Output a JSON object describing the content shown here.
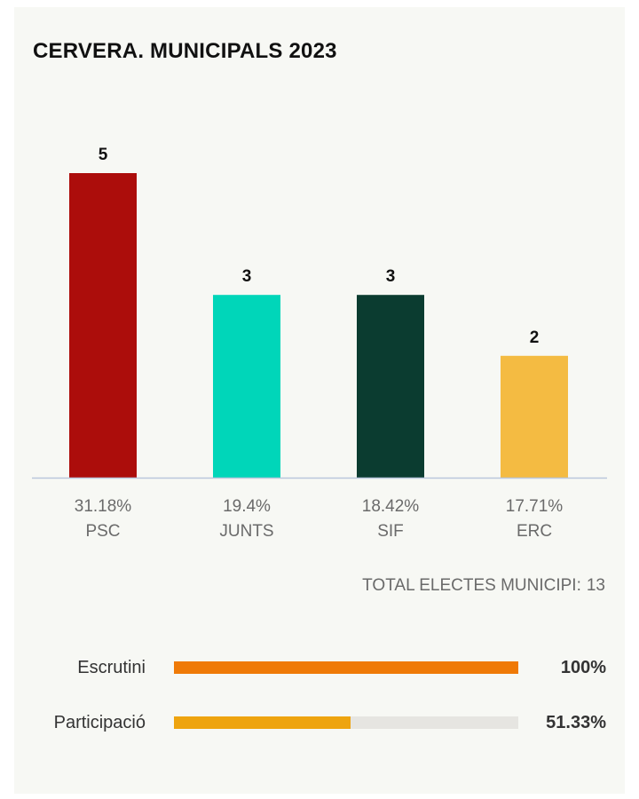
{
  "chart_data": {
    "type": "bar",
    "title": "CERVERA. MUNICIPALS 2023",
    "categories": [
      "PSC",
      "JUNTS",
      "SIF",
      "ERC"
    ],
    "values": [
      5,
      3,
      3,
      2
    ],
    "percentages": [
      "31.18%",
      "19.4%",
      "18.42%",
      "17.71%"
    ],
    "colors": [
      "#ac0d0b",
      "#00d6b9",
      "#0b3c30",
      "#f4bb42"
    ],
    "ylim": [
      0,
      5
    ],
    "grid": false,
    "legend": "none"
  },
  "total": {
    "label": "TOTAL ELECTES MUNICIPI:",
    "value": "13"
  },
  "progress": [
    {
      "label": "Escrutini",
      "value_text": "100%",
      "fraction": 1.0,
      "color": "#ef7a07"
    },
    {
      "label": "Participació",
      "value_text": "51.33%",
      "fraction": 0.5133,
      "color": "#eea40f"
    }
  ]
}
